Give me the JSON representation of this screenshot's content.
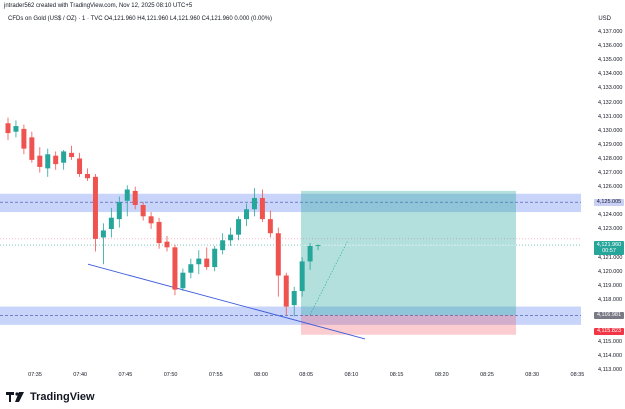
{
  "header": {
    "credit": "jntrader562 created with TradingView.com, Nov 12, 2025 08:10 UTC+5",
    "symbol_line": "CFDs on Gold (US$ / OZ) · 1 · TVC  O4,121.960  H4,121.960  L4,121.960  C4,121.960  0.000 (0.00%)"
  },
  "axis": {
    "currency": "USD",
    "labels": [
      "4,137.000",
      "4,136.000",
      "4,135.000",
      "4,134.000",
      "4,133.000",
      "4,132.000",
      "4,131.000",
      "4,130.000",
      "4,129.000",
      "4,128.000",
      "4,127.000",
      "4,126.000",
      "4,124.000",
      "4,123.000",
      "4,121.000",
      "4,120.000",
      "4,119.000",
      "4,118.000",
      "4,115.000",
      "4,114.000",
      "4,113.000"
    ],
    "tags": {
      "target": "4,125.005",
      "current": "4,121.960",
      "countdown": "00:57",
      "entry": "4,116.981",
      "stop": "4,115.823"
    }
  },
  "time_axis": {
    "labels": [
      "07:35",
      "07:40",
      "07:45",
      "07:50",
      "07:55",
      "08:00",
      "08:05",
      "08:10",
      "08:15",
      "08:20",
      "08:25",
      "08:30",
      "08:35"
    ]
  },
  "footer": {
    "brand": "TradingView"
  },
  "colors": {
    "up": "#26a69a",
    "down": "#ef5350",
    "zone": "#5b7bf0",
    "profit": "#26a69a",
    "loss": "#f23645",
    "trendline": "#3b5bdb"
  },
  "candles": [
    {
      "o": 4130.6,
      "h": 4131.0,
      "l": 4129.4,
      "c": 4129.9
    },
    {
      "o": 4130.0,
      "h": 4130.8,
      "l": 4129.6,
      "c": 4130.4
    },
    {
      "o": 4130.2,
      "h": 4130.5,
      "l": 4128.4,
      "c": 4128.8
    },
    {
      "o": 4129.6,
      "h": 4130.0,
      "l": 4127.8,
      "c": 4128.0
    },
    {
      "o": 4128.3,
      "h": 4128.9,
      "l": 4127.1,
      "c": 4127.5
    },
    {
      "o": 4127.4,
      "h": 4128.8,
      "l": 4126.8,
      "c": 4128.4
    },
    {
      "o": 4128.3,
      "h": 4128.6,
      "l": 4127.3,
      "c": 4127.7
    },
    {
      "o": 4127.8,
      "h": 4128.7,
      "l": 4127.3,
      "c": 4128.6
    },
    {
      "o": 4128.5,
      "h": 4129.0,
      "l": 4128.0,
      "c": 4128.2
    },
    {
      "o": 4128.1,
      "h": 4128.5,
      "l": 4126.8,
      "c": 4127.0
    },
    {
      "o": 4127.0,
      "h": 4127.4,
      "l": 4126.5,
      "c": 4126.7
    },
    {
      "o": 4126.8,
      "h": 4127.0,
      "l": 4121.5,
      "c": 4122.4
    },
    {
      "o": 4122.5,
      "h": 4123.5,
      "l": 4120.6,
      "c": 4123.0
    },
    {
      "o": 4123.1,
      "h": 4124.6,
      "l": 4122.5,
      "c": 4123.9
    },
    {
      "o": 4123.8,
      "h": 4125.4,
      "l": 4123.2,
      "c": 4125.0
    },
    {
      "o": 4125.1,
      "h": 4126.2,
      "l": 4124.0,
      "c": 4125.9
    },
    {
      "o": 4125.8,
      "h": 4126.1,
      "l": 4124.5,
      "c": 4124.8
    },
    {
      "o": 4124.8,
      "h": 4125.0,
      "l": 4123.7,
      "c": 4124.0
    },
    {
      "o": 4124.0,
      "h": 4124.3,
      "l": 4123.1,
      "c": 4123.5
    },
    {
      "o": 4123.6,
      "h": 4123.9,
      "l": 4121.7,
      "c": 4122.1
    },
    {
      "o": 4122.2,
      "h": 4122.6,
      "l": 4121.5,
      "c": 4121.8
    },
    {
      "o": 4121.8,
      "h": 4122.0,
      "l": 4118.4,
      "c": 4118.8
    },
    {
      "o": 4118.9,
      "h": 4120.3,
      "l": 4118.7,
      "c": 4120.0
    },
    {
      "o": 4120.0,
      "h": 4121.0,
      "l": 4119.6,
      "c": 4120.6
    },
    {
      "o": 4120.6,
      "h": 4121.6,
      "l": 4119.9,
      "c": 4121.0
    },
    {
      "o": 4121.0,
      "h": 4121.8,
      "l": 4120.2,
      "c": 4120.4
    },
    {
      "o": 4120.4,
      "h": 4121.9,
      "l": 4120.1,
      "c": 4121.7
    },
    {
      "o": 4121.6,
      "h": 4122.8,
      "l": 4121.3,
      "c": 4122.3
    },
    {
      "o": 4122.3,
      "h": 4123.2,
      "l": 4121.9,
      "c": 4122.7
    },
    {
      "o": 4122.7,
      "h": 4124.0,
      "l": 4122.3,
      "c": 4123.8
    },
    {
      "o": 4123.8,
      "h": 4124.9,
      "l": 4123.3,
      "c": 4124.5
    },
    {
      "o": 4124.5,
      "h": 4126.0,
      "l": 4124.0,
      "c": 4125.3
    },
    {
      "o": 4125.3,
      "h": 4125.9,
      "l": 4123.6,
      "c": 4123.8
    },
    {
      "o": 4123.8,
      "h": 4124.4,
      "l": 4122.5,
      "c": 4122.8
    },
    {
      "o": 4122.8,
      "h": 4123.2,
      "l": 4118.3,
      "c": 4119.8
    },
    {
      "o": 4119.8,
      "h": 4120.0,
      "l": 4117.0,
      "c": 4117.6
    },
    {
      "o": 4117.7,
      "h": 4119.0,
      "l": 4116.9,
      "c": 4118.7
    },
    {
      "o": 4118.7,
      "h": 4121.1,
      "l": 4118.3,
      "c": 4120.8
    },
    {
      "o": 4120.8,
      "h": 4122.1,
      "l": 4120.2,
      "c": 4121.9
    },
    {
      "o": 4121.9,
      "h": 4122.0,
      "l": 4121.6,
      "c": 4121.96
    }
  ]
}
